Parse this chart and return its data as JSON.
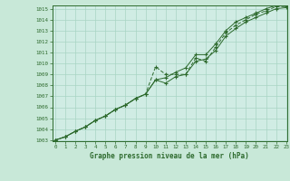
{
  "title": "Graphe pression niveau de la mer (hPa)",
  "background_color": "#c8e8d8",
  "plot_bg_color": "#d0ece4",
  "grid_color": "#a8d4c4",
  "line_color": "#2d6a2d",
  "xmin": 0,
  "xmax": 23,
  "ymin": 1003,
  "ymax": 1015,
  "xticks": [
    0,
    1,
    2,
    3,
    4,
    5,
    6,
    7,
    8,
    9,
    10,
    11,
    12,
    13,
    14,
    15,
    16,
    17,
    18,
    19,
    20,
    21,
    22,
    23
  ],
  "yticks": [
    1003,
    1004,
    1005,
    1006,
    1007,
    1008,
    1009,
    1010,
    1011,
    1012,
    1013,
    1014,
    1015
  ],
  "series1_x": [
    0,
    1,
    2,
    3,
    4,
    5,
    6,
    7,
    8,
    9,
    10,
    11,
    12,
    13,
    14,
    15,
    16,
    17,
    18,
    19,
    20,
    21,
    22,
    23
  ],
  "series1_y": [
    1003.0,
    1003.3,
    1003.8,
    1004.2,
    1004.8,
    1005.2,
    1005.8,
    1006.2,
    1006.8,
    1007.2,
    1008.5,
    1008.2,
    1008.8,
    1009.0,
    1010.2,
    1010.4,
    1011.2,
    1012.5,
    1013.2,
    1013.8,
    1014.2,
    1014.6,
    1015.0,
    1015.1
  ],
  "series2_x": [
    0,
    1,
    2,
    3,
    4,
    5,
    6,
    7,
    8,
    9,
    10,
    11,
    12,
    13,
    14,
    15,
    16,
    17,
    18,
    19,
    20,
    21,
    22,
    23
  ],
  "series2_y": [
    1003.0,
    1003.3,
    1003.8,
    1004.2,
    1004.8,
    1005.2,
    1005.8,
    1006.2,
    1006.8,
    1007.2,
    1009.7,
    1009.0,
    1009.0,
    1009.0,
    1010.5,
    1010.2,
    1011.5,
    1012.8,
    1013.5,
    1014.0,
    1014.5,
    1014.8,
    1015.2,
    1015.2
  ],
  "series3_x": [
    0,
    1,
    2,
    3,
    4,
    5,
    6,
    7,
    8,
    9,
    10,
    11,
    12,
    13,
    14,
    15,
    16,
    17,
    18,
    19,
    20,
    21,
    22,
    23
  ],
  "series3_y": [
    1003.0,
    1003.3,
    1003.8,
    1004.2,
    1004.8,
    1005.2,
    1005.8,
    1006.2,
    1006.8,
    1007.2,
    1008.5,
    1008.7,
    1009.2,
    1009.6,
    1010.8,
    1010.8,
    1011.8,
    1013.0,
    1013.8,
    1014.2,
    1014.6,
    1015.0,
    1015.3,
    1015.3
  ]
}
